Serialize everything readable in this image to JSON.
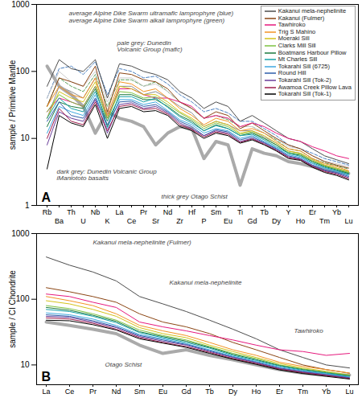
{
  "chart_data": [
    {
      "type": "line",
      "title": "A",
      "y_label": "sample / Primitive Mantle",
      "log": "y",
      "legend": "top-right",
      "categories": [
        "Rb",
        "Ba",
        "Th",
        "U",
        "Nb",
        "K",
        "La",
        "Ce",
        "Pr",
        "Sr",
        "Nd",
        "Zr",
        "Hf",
        "P",
        "Sm",
        "Eu",
        "Ti",
        "Gd",
        "Tb",
        "Dy",
        "Y",
        "Ho",
        "Er",
        "Tm",
        "Yb",
        "Lu"
      ],
      "ylim": [
        1,
        1000
      ],
      "yticks": [
        1,
        10,
        100,
        1000
      ],
      "series": [
        {
          "name": "Kakanui mela-nephelinite",
          "color": "#4d4d4d",
          "values": [
            60,
            150,
            110,
            100,
            150,
            40,
            130,
            120,
            100,
            90,
            75,
            50,
            40,
            28,
            35,
            30,
            18,
            22,
            17,
            13,
            10,
            9,
            7,
            5.5,
            4.8,
            4.2
          ]
        },
        {
          "name": "Kakanui (Fulmer)",
          "color": "#8b4513",
          "values": [
            30,
            80,
            70,
            60,
            120,
            25,
            95,
            90,
            75,
            70,
            55,
            35,
            28,
            20,
            25,
            22,
            14,
            17,
            13,
            10,
            8,
            7,
            5.5,
            4.5,
            4,
            3.6
          ]
        },
        {
          "name": "Tawhiroko",
          "color": "#e6197d",
          "values": [
            25,
            40,
            35,
            30,
            60,
            20,
            55,
            55,
            45,
            40,
            40,
            35,
            30,
            20,
            22,
            20,
            15,
            17,
            15,
            12,
            10,
            9,
            7.5,
            6.5,
            5.5,
            5
          ]
        },
        {
          "name": "Trig S Mahino",
          "color": "#f39323",
          "values": [
            30,
            60,
            45,
            40,
            80,
            22,
            70,
            65,
            50,
            55,
            40,
            28,
            22,
            16,
            20,
            18,
            13,
            14,
            12,
            9,
            7,
            6.5,
            5,
            4.2,
            3.8,
            3.3
          ]
        },
        {
          "name": "Moeraki Sill",
          "color": "#d4c21a",
          "values": [
            20,
            50,
            40,
            35,
            70,
            18,
            60,
            55,
            45,
            45,
            35,
            25,
            20,
            15,
            18,
            16,
            12,
            13,
            11,
            8.5,
            6.5,
            6,
            4.8,
            4,
            3.6,
            3.2
          ]
        },
        {
          "name": "Clarks Mill Sill",
          "color": "#7dc242",
          "values": [
            25,
            45,
            35,
            30,
            60,
            20,
            50,
            48,
            40,
            42,
            32,
            24,
            19,
            14,
            17,
            15,
            11.5,
            12.5,
            10,
            8,
            6.2,
            5.8,
            4.6,
            3.9,
            3.5,
            3.1
          ]
        },
        {
          "name": "Boatmans Harbour Pillow",
          "color": "#1b7a3e",
          "values": [
            15,
            35,
            30,
            28,
            55,
            15,
            45,
            45,
            38,
            38,
            30,
            22,
            18,
            13,
            16,
            14,
            11,
            12,
            10,
            8,
            6,
            5.6,
            4.5,
            3.8,
            3.4,
            3
          ]
        },
        {
          "name": "Mt Charles Sill",
          "color": "#17a2a8",
          "values": [
            20,
            40,
            28,
            25,
            50,
            18,
            42,
            42,
            35,
            40,
            29,
            21,
            17,
            13,
            15.5,
            14,
            11,
            11.5,
            9.5,
            7.5,
            6,
            5.4,
            4.3,
            3.7,
            3.3,
            2.9
          ]
        },
        {
          "name": "Tokarahi Sill (6725)",
          "color": "#3fa9e0",
          "values": [
            12,
            30,
            25,
            22,
            45,
            14,
            38,
            38,
            32,
            35,
            26,
            19,
            16,
            12,
            14,
            13,
            10,
            11,
            9,
            7.2,
            5.7,
            5.2,
            4.2,
            3.6,
            3.2,
            2.8
          ]
        },
        {
          "name": "Round Hill",
          "color": "#2e5eaa",
          "values": [
            18,
            35,
            22,
            20,
            40,
            16,
            35,
            36,
            30,
            32,
            25,
            18,
            15,
            11,
            13.5,
            12.5,
            9.5,
            10.5,
            8.7,
            7,
            5.5,
            5,
            4,
            3.4,
            3.1,
            2.7
          ]
        },
        {
          "name": "Tokarahi Sill (Tok-2)",
          "color": "#6a3d9a",
          "values": [
            8,
            25,
            20,
            18,
            38,
            12,
            32,
            34,
            28,
            30,
            24,
            17,
            14,
            11,
            13,
            12,
            9,
            10,
            8.5,
            6.8,
            5.3,
            4.9,
            3.9,
            3.3,
            3,
            2.6
          ]
        },
        {
          "name": "Awamoa Creek Pillow Lava",
          "color": "#9e1b4b",
          "values": [
            10,
            28,
            18,
            16,
            35,
            13,
            30,
            32,
            27,
            28,
            23,
            16,
            13.5,
            10.5,
            12.5,
            11.5,
            8.7,
            9.8,
            8.2,
            6.6,
            5.2,
            4.8,
            3.8,
            3.2,
            2.9,
            2.5
          ]
        },
        {
          "name": "Tokarahi Sill (Tok-1)",
          "color": "#000000",
          "values": [
            3.5,
            22,
            17,
            15,
            32,
            10,
            28,
            30,
            25,
            26,
            22,
            15,
            13,
            10,
            12,
            11,
            8.5,
            9.5,
            8,
            6.5,
            5,
            4.7,
            3.7,
            3.1,
            2.8,
            2.4
          ]
        }
      ],
      "annotations": [
        {
          "text": "average Alpine Dike Swarm ultramafic lamprophyre (blue)",
          "color": "#4a7fc0",
          "line_style": "dashed",
          "values": [
            40,
            110,
            120,
            90,
            140,
            45,
            110,
            100,
            80,
            85,
            65,
            45,
            35,
            25,
            28,
            24,
            18,
            18,
            14,
            11,
            8,
            7,
            6,
            5,
            4.5,
            4
          ]
        },
        {
          "text": "average Alpine Dike Swarm alkali lamprophyre (green)",
          "color": "#5aa05a",
          "line_style": "dashed",
          "values": [
            30,
            80,
            60,
            50,
            90,
            30,
            75,
            75,
            60,
            70,
            50,
            35,
            28,
            20,
            22,
            19,
            15,
            15,
            12,
            9.5,
            7,
            6.5,
            5,
            4.3,
            3.9,
            3.5
          ]
        },
        {
          "text": "pale grey: Dunedin Volcanic Group (mafic)",
          "color": "#cccccc",
          "line_style": "solid",
          "values": [
            40,
            100,
            70,
            60,
            100,
            35,
            80,
            80,
            60,
            65,
            50,
            35,
            28,
            20,
            22,
            20,
            15,
            15,
            12,
            10,
            7.5,
            7,
            5.5,
            4.6,
            4.2,
            3.8
          ]
        },
        {
          "text": "dark grey: Dunedin Volcanic Group iManiototo basalts",
          "color": "#8c8c8c",
          "line_style": "solid",
          "values": [
            20,
            60,
            50,
            40,
            80,
            20,
            60,
            60,
            45,
            50,
            40,
            30,
            24,
            15,
            18,
            16,
            13,
            13,
            10.5,
            8.5,
            6.5,
            6,
            4.8,
            4,
            3.6,
            3.2
          ]
        },
        {
          "text": "thick grey Otago Schist",
          "color": "#aaaaaa",
          "line_style": "thick",
          "values": [
            120,
            60,
            45,
            30,
            12,
            25,
            20,
            18,
            15,
            8,
            12,
            15,
            14,
            5,
            9,
            8,
            2,
            7,
            6,
            5.5,
            4.5,
            4.2,
            3.8,
            3.4,
            3.2,
            3
          ]
        }
      ]
    },
    {
      "type": "line",
      "title": "B",
      "y_label": "sample / CI Chondrite",
      "log": "y",
      "categories": [
        "La",
        "Ce",
        "Pr",
        "Nd",
        "Sm",
        "Eu",
        "Gd",
        "Tb",
        "Dy",
        "Ho",
        "Er",
        "Tm",
        "Yb",
        "Lu"
      ],
      "ylim": [
        5,
        1000
      ],
      "yticks": [
        10,
        100,
        1000
      ],
      "series": [
        {
          "name": "Kakanui mela-nephelinite",
          "color": "#4d4d4d",
          "values": [
            440,
            330,
            260,
            190,
            110,
            85,
            65,
            48,
            35,
            25,
            17,
            13,
            10,
            9
          ]
        },
        {
          "name": "Kakanui (Fulmer)",
          "color": "#8b4513",
          "values": [
            150,
            130,
            110,
            90,
            60,
            45,
            38,
            30,
            22,
            17,
            13,
            10,
            8.5,
            7.5
          ]
        },
        {
          "name": "Tawhiroko",
          "color": "#e6197d",
          "values": [
            120,
            110,
            90,
            75,
            45,
            38,
            33,
            28,
            24,
            20,
            17,
            16,
            14,
            15
          ]
        },
        {
          "name": "Trig S Mahino",
          "color": "#f39323",
          "values": [
            110,
            95,
            80,
            60,
            40,
            33,
            28,
            22,
            17,
            14,
            11,
            9.5,
            8.5,
            7.5
          ]
        },
        {
          "name": "Moeraki Sill",
          "color": "#d4c21a",
          "values": [
            95,
            85,
            70,
            55,
            37,
            30,
            26,
            20,
            16,
            13,
            10.5,
            9,
            8,
            7
          ]
        },
        {
          "name": "Clarks Mill Sill",
          "color": "#7dc242",
          "values": [
            80,
            72,
            60,
            48,
            34,
            28,
            24,
            19,
            15,
            12.5,
            10,
            8.7,
            7.8,
            7
          ]
        },
        {
          "name": "Boatmans Harbour Pillow",
          "color": "#1b7a3e",
          "values": [
            75,
            68,
            57,
            46,
            32,
            27,
            23,
            18.5,
            14.5,
            12,
            9.8,
            8.5,
            7.6,
            6.8
          ]
        },
        {
          "name": "Mt Charles Sill",
          "color": "#17a2a8",
          "values": [
            70,
            65,
            55,
            44,
            31,
            26,
            22,
            18,
            14,
            11.7,
            9.6,
            8.3,
            7.5,
            6.7
          ]
        },
        {
          "name": "Tokarahi Sill (6725)",
          "color": "#3fa9e0",
          "values": [
            62,
            58,
            50,
            40,
            29,
            25,
            21,
            17,
            13.5,
            11.3,
            9.3,
            8.1,
            7.3,
            6.5
          ]
        },
        {
          "name": "Round Hill",
          "color": "#2e5eaa",
          "values": [
            58,
            55,
            47,
            38,
            28,
            24,
            20.5,
            16.5,
            13.2,
            11,
            9,
            7.9,
            7.1,
            6.4
          ]
        },
        {
          "name": "Tokarahi Sill (Tok-2)",
          "color": "#6a3d9a",
          "values": [
            55,
            53,
            45,
            37,
            27,
            23,
            20,
            16,
            13,
            10.8,
            8.8,
            7.8,
            7,
            6.3
          ]
        },
        {
          "name": "Awamoa Creek Pillow Lava",
          "color": "#9e1b4b",
          "values": [
            52,
            50,
            43,
            35,
            26,
            22,
            19,
            15.5,
            12.5,
            10.5,
            8.6,
            7.6,
            6.9,
            6.2
          ]
        },
        {
          "name": "Tokarahi Sill (Tok-1)",
          "color": "#000000",
          "values": [
            48,
            47,
            41,
            34,
            25,
            21.5,
            18.5,
            15,
            12.2,
            10.2,
            8.4,
            7.4,
            6.7,
            6.1
          ]
        }
      ],
      "annotations": [
        {
          "text": "Kakanui mela-nephelinite (Fulmer)"
        },
        {
          "text": "Kakanui mela-nephelinite"
        },
        {
          "text": "Tawhiroko"
        },
        {
          "text": "Otago Schist",
          "color": "#aaaaaa",
          "line_style": "thick",
          "values": [
            45,
            40,
            35,
            30,
            20,
            15,
            17,
            14,
            12,
            10,
            8.5,
            7.5,
            7,
            7
          ]
        }
      ]
    }
  ]
}
